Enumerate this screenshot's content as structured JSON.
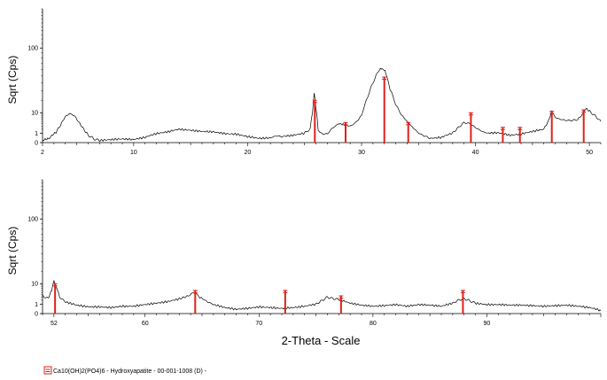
{
  "colors": {
    "line": "#000000",
    "reference": "#e0201b",
    "axis": "#000000"
  },
  "legend": {
    "label": "Ca10(OH)2(PO4)6 - Hydroxyapatite - 00-001-1008 (D) -",
    "icon": "reference-marker-icon"
  },
  "chart_data": [
    {
      "type": "line",
      "ylabel": "Sqrt (Cps)",
      "xlabel": "",
      "y_scale": "sqrt",
      "xlim": [
        2,
        51
      ],
      "ylim": [
        0,
        200
      ],
      "x_ticks": [
        2,
        10,
        20,
        30,
        40,
        50
      ],
      "y_ticks": [
        0,
        1,
        10,
        100
      ],
      "grid": false,
      "series": [
        {
          "x": [
            2.0,
            2.6,
            3.2,
            3.6,
            4.0,
            4.4,
            4.8,
            5.2,
            5.6,
            6.0,
            6.5,
            7.0,
            8.0,
            9.0,
            10.0,
            11.0,
            12.0,
            13.0,
            14.0,
            15.0,
            16.0,
            17.0,
            18.0,
            19.0,
            20.0,
            21.0,
            22.0,
            22.5,
            23.0,
            24.0,
            25.0,
            25.5,
            25.7,
            25.85,
            26.0,
            26.2,
            26.5,
            27.0,
            27.5,
            28.0,
            28.6,
            29.0,
            29.5,
            30.0,
            30.5,
            31.0,
            31.5,
            31.8,
            32.0,
            32.2,
            32.5,
            33.0,
            33.5,
            34.0,
            34.5,
            35.0,
            35.5,
            36.0,
            37.0,
            38.0,
            38.5,
            39.0,
            39.5,
            40.0,
            40.5,
            41.0,
            42.0,
            43.0,
            44.0,
            45.0,
            46.0,
            46.4,
            46.7,
            47.0,
            47.5,
            48.0,
            48.5,
            49.0,
            49.4,
            49.7,
            50.0,
            50.5,
            51.0
          ],
          "y": [
            0.05,
            0.2,
            1.2,
            3.5,
            7.5,
            9.5,
            8.0,
            4.5,
            2.0,
            0.6,
            0.15,
            0.05,
            0.1,
            0.15,
            0.1,
            0.3,
            0.9,
            1.3,
            2.0,
            1.7,
            1.4,
            1.3,
            0.9,
            0.8,
            0.4,
            0.2,
            0.25,
            0.5,
            0.4,
            0.6,
            1.0,
            2.0,
            10.0,
            28.0,
            12.0,
            1.6,
            0.9,
            0.8,
            2.5,
            4.0,
            3.5,
            3.0,
            4.5,
            8.0,
            22.0,
            40.0,
            58.0,
            62.0,
            60.0,
            50.0,
            32.0,
            16.0,
            8.5,
            5.0,
            2.5,
            1.0,
            0.5,
            0.2,
            0.3,
            1.0,
            2.5,
            4.5,
            4.0,
            2.5,
            1.5,
            1.0,
            1.1,
            0.6,
            0.8,
            1.4,
            2.0,
            5.0,
            11.0,
            7.0,
            6.0,
            5.5,
            5.5,
            6.0,
            9.0,
            13.0,
            11.0,
            8.0,
            5.0
          ]
        }
      ],
      "reference_peaks": [
        {
          "x": 25.9,
          "y": 20
        },
        {
          "x": 28.6,
          "y": 4.5
        },
        {
          "x": 32.0,
          "y": 48
        },
        {
          "x": 34.1,
          "y": 4.5
        },
        {
          "x": 39.6,
          "y": 10
        },
        {
          "x": 42.4,
          "y": 2.6
        },
        {
          "x": 43.9,
          "y": 2.6
        },
        {
          "x": 46.7,
          "y": 11
        },
        {
          "x": 49.5,
          "y": 12
        }
      ]
    },
    {
      "type": "line",
      "ylabel": "Sqrt (Cps)",
      "xlabel": "2-Theta - Scale",
      "y_scale": "sqrt",
      "xlim": [
        51,
        100
      ],
      "ylim": [
        0,
        200
      ],
      "x_ticks": [
        52,
        60,
        70,
        80,
        90
      ],
      "y_ticks": [
        0,
        1,
        10,
        100
      ],
      "grid": false,
      "series": [
        {
          "x": [
            51.0,
            51.5,
            51.8,
            52.0,
            52.2,
            52.5,
            53.0,
            54.0,
            55.0,
            56.0,
            57.0,
            58.0,
            59.0,
            60.0,
            61.0,
            62.0,
            63.0,
            63.8,
            64.3,
            64.8,
            65.5,
            66.0,
            67.0,
            68.0,
            69.0,
            70.0,
            71.0,
            72.0,
            73.0,
            74.0,
            75.0,
            75.5,
            76.0,
            76.5,
            77.0,
            78.0,
            79.0,
            80.0,
            81.0,
            82.0,
            83.0,
            84.0,
            85.0,
            86.0,
            87.0,
            87.5,
            88.0,
            88.5,
            89.0,
            90.0,
            91.0,
            92.0,
            93.0,
            94.0,
            95.0,
            96.0,
            97.0,
            98.0,
            99.0,
            100.0
          ],
          "y": [
            3.5,
            2.5,
            6.0,
            12.0,
            8.0,
            3.0,
            1.5,
            0.8,
            0.5,
            0.5,
            0.4,
            0.6,
            0.6,
            0.9,
            1.2,
            1.6,
            2.4,
            3.5,
            5.0,
            3.0,
            1.5,
            0.9,
            0.4,
            0.2,
            0.3,
            0.5,
            0.4,
            0.3,
            0.4,
            0.6,
            1.0,
            1.8,
            3.0,
            2.5,
            2.2,
            1.2,
            0.8,
            0.6,
            0.7,
            0.9,
            0.6,
            0.9,
            0.8,
            0.6,
            1.2,
            2.0,
            2.5,
            1.8,
            1.2,
            0.9,
            0.9,
            0.8,
            0.8,
            0.7,
            0.6,
            0.7,
            0.8,
            0.6,
            0.4,
            0.1
          ]
        }
      ],
      "reference_peaks": [
        {
          "x": 52.1,
          "y": 10
        },
        {
          "x": 64.4,
          "y": 6
        },
        {
          "x": 72.3,
          "y": 6
        },
        {
          "x": 77.2,
          "y": 3.5
        },
        {
          "x": 87.9,
          "y": 6
        }
      ]
    }
  ]
}
